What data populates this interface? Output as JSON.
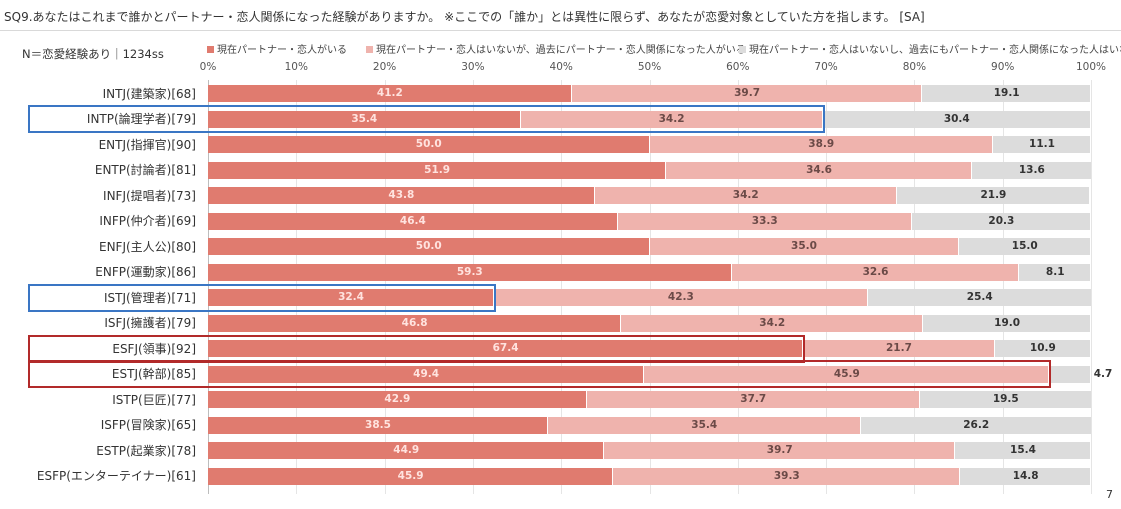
{
  "title": "SQ9.あなたはこれまで誰かとパートナー・恋人関係になった経験がありますか。 ※ここでの「誰か」とは異性に限らず、あなたが恋愛対象としていた方を指します。 [SA]",
  "sample_note": "N＝恋愛経験あり｜1234ss",
  "page_number": "7",
  "chart_data": {
    "type": "bar",
    "stacked": true,
    "orientation": "horizontal",
    "xlim": [
      0,
      100
    ],
    "x_ticks": [
      "0%",
      "10%",
      "20%",
      "30%",
      "40%",
      "50%",
      "60%",
      "70%",
      "80%",
      "90%",
      "100%"
    ],
    "legend_position": "top",
    "categories": [
      "INTJ(建築家)[68]",
      "INTP(論理学者)[79]",
      "ENTJ(指揮官)[90]",
      "ENTP(討論者)[81]",
      "INFJ(提唱者)[73]",
      "INFP(仲介者)[69]",
      "ENFJ(主人公)[80]",
      "ENFP(運動家)[86]",
      "ISTJ(管理者)[71]",
      "ISFJ(擁護者)[79]",
      "ESFJ(領事)[92]",
      "ESTJ(幹部)[85]",
      "ISTP(巨匠)[77]",
      "ISFP(冒険家)[65]",
      "ESTP(起業家)[78]",
      "ESFP(エンターテイナー)[61]"
    ],
    "series": [
      {
        "name": "現在パートナー・恋人がいる",
        "color": "#e07b6f",
        "label_color": "#ffe3df",
        "values": [
          41.2,
          35.4,
          50.0,
          51.9,
          43.8,
          46.4,
          50.0,
          59.3,
          32.4,
          46.8,
          67.4,
          49.4,
          42.9,
          38.5,
          44.9,
          45.9
        ]
      },
      {
        "name": "現在パートナー・恋人はいないが、過去にパートナー・恋人関係になった人がいる",
        "color": "#efb3ad",
        "label_color": "#6b4a47",
        "values": [
          39.7,
          34.2,
          38.9,
          34.6,
          34.2,
          33.3,
          35.0,
          32.6,
          42.3,
          34.2,
          21.7,
          45.9,
          37.7,
          35.4,
          39.7,
          39.3
        ]
      },
      {
        "name": "現在パートナー・恋人はいないし、過去にもパートナー・恋人関係になった人はいない",
        "color": "#dcdcdc",
        "label_color": "#333333",
        "values": [
          19.1,
          30.4,
          11.1,
          13.6,
          21.9,
          20.3,
          15.0,
          8.1,
          25.4,
          19.0,
          10.9,
          4.7,
          19.5,
          26.2,
          15.4,
          14.8
        ]
      }
    ],
    "highlights": [
      {
        "row": 1,
        "through_series": 1,
        "color": "#3a76c4"
      },
      {
        "row": 8,
        "through_series": 0,
        "color": "#3a76c4"
      },
      {
        "row": 10,
        "through_series": 0,
        "color": "#b22a2a"
      },
      {
        "row": 11,
        "through_series": 1,
        "color": "#b22a2a"
      }
    ]
  }
}
